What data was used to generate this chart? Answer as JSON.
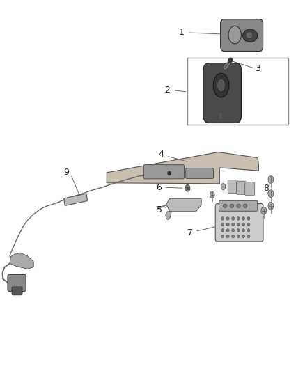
{
  "bg_color": "#ffffff",
  "fig_width": 4.38,
  "fig_height": 5.33,
  "dpi": 100,
  "label_fontsize": 9,
  "label_color": "#222222",
  "line_color": "#666666",
  "line_lw": 0.7
}
